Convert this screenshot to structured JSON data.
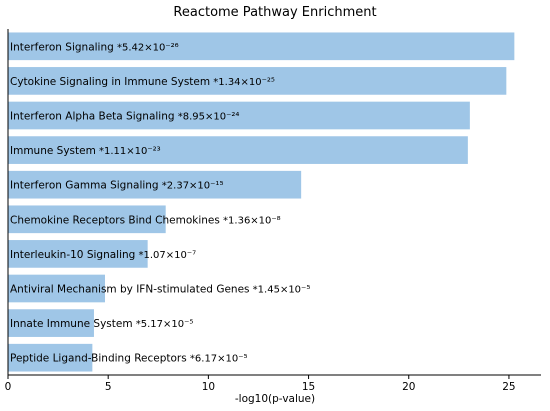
{
  "chart_data": {
    "type": "bar",
    "orientation": "horizontal",
    "title": "Reactome Pathway Enrichment",
    "xlabel": "-log10(p-value)",
    "ylabel": "",
    "xlim": [
      0,
      26.6
    ],
    "xticks": [
      0,
      5,
      10,
      15,
      20,
      25
    ],
    "bar_color": "#9fc6e7",
    "categories": [
      "Interferon Signaling",
      "Cytokine Signaling in Immune System",
      "Interferon Alpha Beta Signaling",
      "Immune System",
      "Interferon Gamma Signaling",
      "Chemokine Receptors Bind Chemokines",
      "Interleukin-10 Signaling",
      "Antiviral Mechanism by IFN-stimulated Genes",
      "Innate Immune System",
      "Peptide Ligand-Binding Receptors"
    ],
    "values": [
      25.27,
      24.87,
      23.05,
      22.95,
      14.63,
      7.87,
      6.97,
      4.84,
      4.29,
      4.21
    ],
    "annotations": [
      "*5.42×10⁻²⁶",
      "*1.34×10⁻²⁵",
      "*8.95×10⁻²⁴",
      "*1.11×10⁻²³",
      "*2.37×10⁻¹⁵",
      "*1.36×10⁻⁸",
      "*1.07×10⁻⁷",
      "*1.45×10⁻⁵",
      "*5.17×10⁻⁵",
      "*6.17×10⁻⁵"
    ],
    "grid": false,
    "legend": false
  }
}
